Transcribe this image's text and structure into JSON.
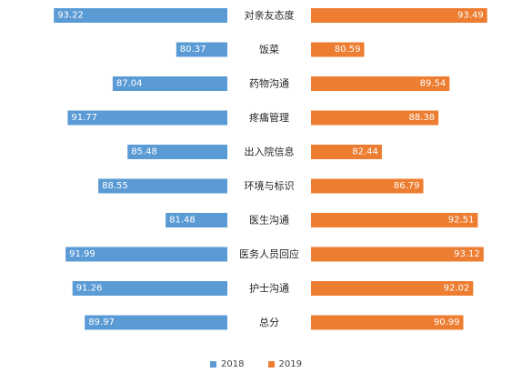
{
  "chart_data": {
    "type": "bar",
    "orientation": "horizontal-butterfly",
    "categories": [
      "对亲友态度",
      "饭菜",
      "药物沟通",
      "疼痛管理",
      "出入院信息",
      "环境与标识",
      "医生沟通",
      "医务人员回应",
      "护士沟通",
      "总分"
    ],
    "series": [
      {
        "name": "2018",
        "color": "#5B9BD5",
        "values": [
          93.22,
          80.37,
          87.04,
          91.77,
          85.48,
          88.55,
          81.48,
          91.99,
          91.26,
          89.97
        ]
      },
      {
        "name": "2019",
        "color": "#ED7D31",
        "values": [
          93.49,
          80.59,
          89.54,
          88.38,
          82.44,
          86.79,
          92.51,
          93.12,
          92.02,
          90.99
        ]
      }
    ],
    "xlim": [
      75,
      94
    ],
    "legend_position": "bottom",
    "grid": false
  }
}
